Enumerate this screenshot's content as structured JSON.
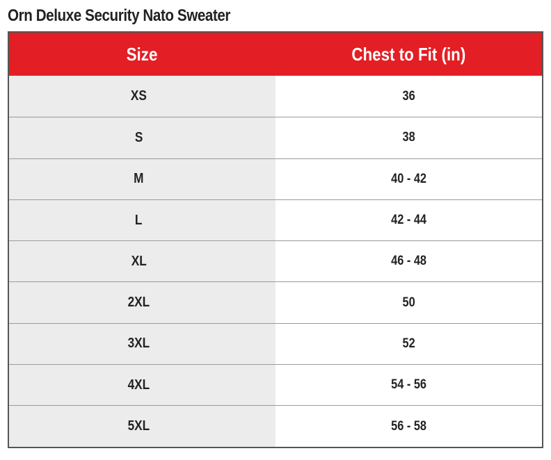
{
  "title": "Orn Deluxe Security Nato Sweater",
  "table": {
    "header": {
      "size": "Size",
      "chest": "Chest to Fit (in)"
    },
    "rows": [
      {
        "size": "XS",
        "chest": "36"
      },
      {
        "size": "S",
        "chest": "38"
      },
      {
        "size": "M",
        "chest": "40 - 42"
      },
      {
        "size": "L",
        "chest": "42 - 44"
      },
      {
        "size": "XL",
        "chest": "46 - 48"
      },
      {
        "size": "2XL",
        "chest": "50"
      },
      {
        "size": "3XL",
        "chest": "52"
      },
      {
        "size": "4XL",
        "chest": "54 - 56"
      },
      {
        "size": "5XL",
        "chest": "56 - 58"
      }
    ]
  },
  "colors": {
    "header_background": "#e31e24",
    "size_column_background": "#ececec"
  }
}
